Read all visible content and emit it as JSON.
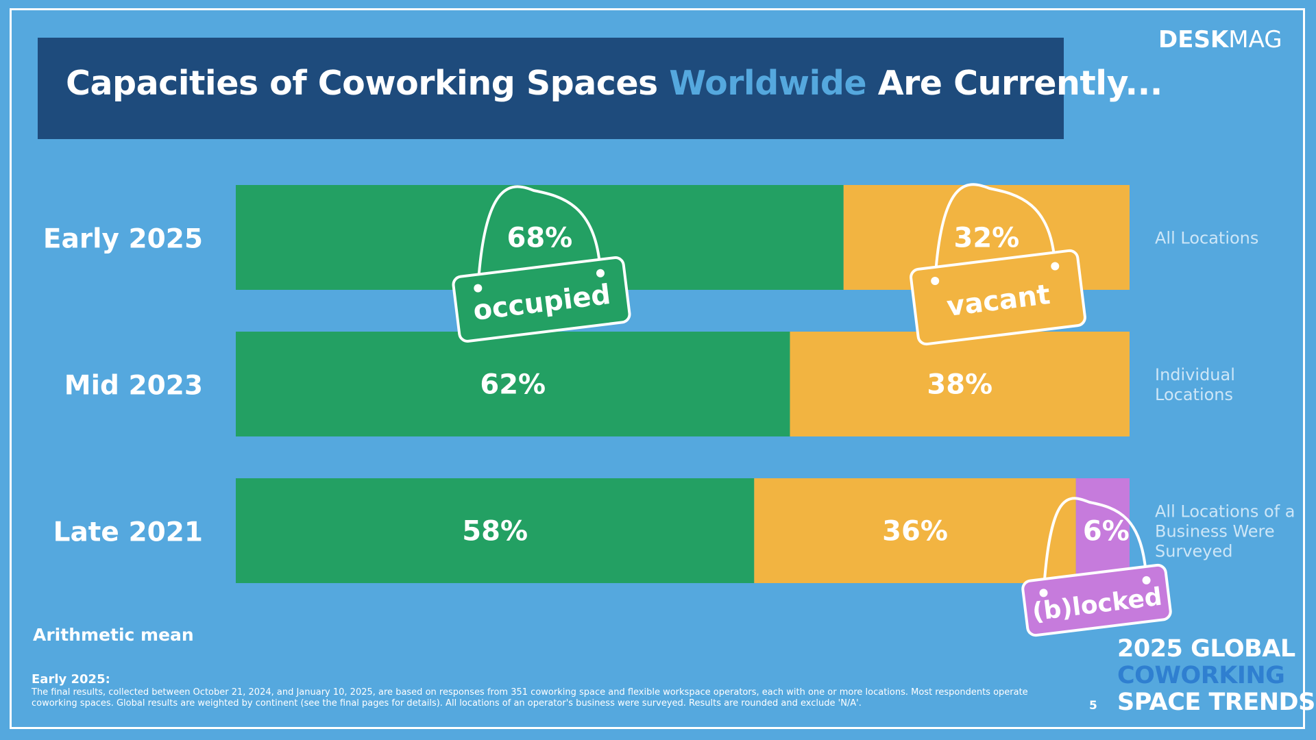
{
  "brand": {
    "bold": "DESK",
    "light": "MAG"
  },
  "title": {
    "part1": "Capacities of Coworking Spaces ",
    "highlight": "Worldwide",
    "part2": " Are Currently..."
  },
  "colors": {
    "occupied": "#23a063",
    "vacant": "#f2b441",
    "blocked": "#c67bdc",
    "background": "#55a8de",
    "title_bg": "#1e4b7c",
    "note_text": "#cde6f7"
  },
  "chart_data": {
    "type": "bar",
    "orientation": "horizontal",
    "stacked": true,
    "categories": [
      "Early 2025",
      "Mid 2023",
      "Late 2021"
    ],
    "series": [
      {
        "name": "occupied",
        "values": [
          68,
          62,
          58
        ]
      },
      {
        "name": "vacant",
        "values": [
          32,
          38,
          36
        ]
      },
      {
        "name": "(b)locked",
        "values": [
          null,
          null,
          6
        ]
      }
    ],
    "value_labels": [
      [
        "68%",
        "32%",
        ""
      ],
      [
        "62%",
        "38%",
        ""
      ],
      [
        "58%",
        "36%",
        "6%"
      ]
    ],
    "row_notes": [
      "All Locations",
      "Individual Locations",
      "All Locations of a Business Were Surveyed"
    ],
    "xlim": [
      0,
      100
    ]
  },
  "chart_note": "Arithmetic mean",
  "footer": {
    "heading": "Early 2025:",
    "text": "The final results, collected between October 21, 2024, and January 10, 2025, are based on responses from 351 coworking space and flexible workspace operators, each with one or more locations. Most respondents operate coworking spaces. Global results are weighted by continent (see the final pages for details). All locations of an operator's business were surveyed. Results are rounded and exclude 'N/A'."
  },
  "page_number": "5",
  "report": {
    "line1": "2025 GLOBAL",
    "line2": "COWORKING",
    "line3": "SPACE TRENDS"
  }
}
